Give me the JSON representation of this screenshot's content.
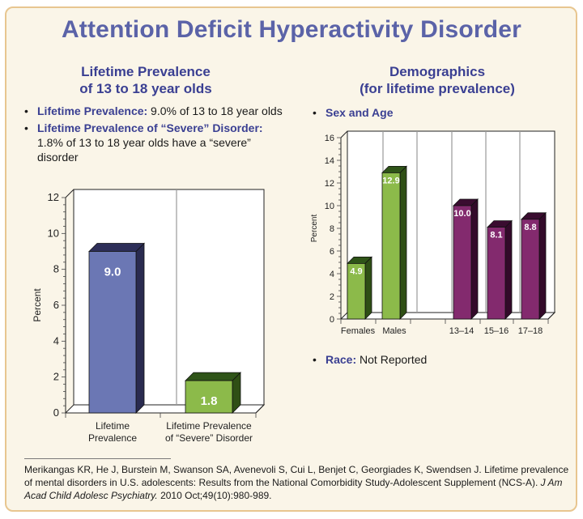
{
  "title": "Attention Deficit Hyperactivity Disorder",
  "left": {
    "heading_line1": "Lifetime Prevalence",
    "heading_line2": "of 13 to 18 year olds",
    "bullets": [
      {
        "keyword": "Lifetime Prevalence:",
        "text": " 9.0% of 13 to 18 year olds"
      },
      {
        "keyword": "Lifetime Prevalence of “Severe” Disorder:",
        "text": " 1.8% of 13 to 18 year olds have a “severe” disorder"
      }
    ]
  },
  "right": {
    "heading_line1": "Demographics",
    "heading_line2": "(for lifetime prevalence)",
    "bullet_sex_age": "Sex and Age",
    "race_keyword": "Race:",
    "race_text": " Not Reported"
  },
  "bullet_glyph": "•",
  "reference": {
    "authors": "Merikangas KR, He J, Burstein M, Swanson SA, Avenevoli S, Cui L, Benjet C, Georgiades K, Swendsen J.",
    "title": "Lifetime prevalence of mental disorders in U.S. adolescents: Results from the National Comorbidity Study-Adolescent Supplement (NCS-A).",
    "journal": "J Am Acad Child Adolesc Psychiatry.",
    "citation": " 2010 Oct;49(10):980-989."
  },
  "chart_data": [
    {
      "type": "bar",
      "title": "Lifetime Prevalence of 13 to 18 year olds",
      "xlabel": "",
      "ylabel": "Percent",
      "ylim": [
        0,
        12
      ],
      "yticks": [
        0,
        2,
        4,
        6,
        8,
        10,
        12
      ],
      "categories": [
        [
          "Lifetime",
          "Prevalence"
        ],
        [
          "Lifetime Prevalence",
          "of “Severe” Disorder"
        ]
      ],
      "values": [
        9.0,
        1.8
      ],
      "labels": [
        "9.0",
        "1.8"
      ],
      "colors": [
        {
          "front": "#6b77b4",
          "top": "#2d2e58",
          "side": "#2a2b50"
        },
        {
          "front": "#8cba4a",
          "top": "#2f5418",
          "side": "#2f4f15"
        }
      ],
      "grid": false
    },
    {
      "type": "bar",
      "title": "Sex and Age",
      "xlabel": "",
      "ylabel": "Percent",
      "ylim": [
        0,
        16
      ],
      "yticks": [
        0,
        2,
        4,
        6,
        8,
        10,
        12,
        14,
        16
      ],
      "categories": [
        "Females",
        "Males",
        "",
        "13–14",
        "15–16",
        "17–18"
      ],
      "values": [
        4.9,
        12.9,
        null,
        10.0,
        8.1,
        8.8
      ],
      "labels": [
        "4.9",
        "12.9",
        "",
        "10.0",
        "8.1",
        "8.8"
      ],
      "groups": [
        "sex",
        "sex",
        "gap",
        "age",
        "age",
        "age"
      ],
      "colors": {
        "sex": {
          "front": "#8cba4a",
          "top": "#2f5418",
          "side": "#2f4f15"
        },
        "age": {
          "front": "#832a6e",
          "top": "#3a0c30",
          "side": "#330a2a"
        }
      },
      "grid": "vertical separators"
    }
  ]
}
